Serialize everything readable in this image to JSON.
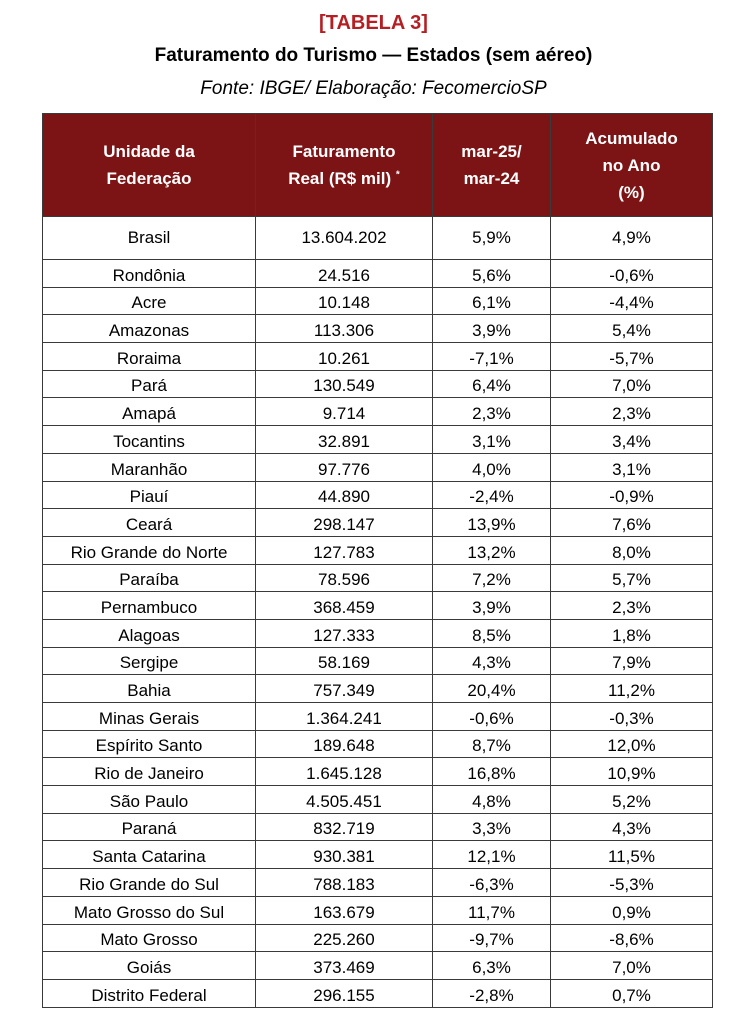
{
  "header": {
    "tag": "[TABELA 3]",
    "title": "Faturamento do Turismo — Estados (sem aéreo)",
    "source": "Fonte: IBGE/ Elaboração: FecomercioSP"
  },
  "colors": {
    "tag": "#b51f24",
    "header_bg": "#7c1416",
    "header_text": "#ffffff"
  },
  "table": {
    "columns": [
      {
        "line1": "Unidade da",
        "line2": "Federação",
        "line3": ""
      },
      {
        "line1": "Faturamento",
        "line2": "Real (R$ mil)",
        "mark": "*",
        "line3": ""
      },
      {
        "line1": "mar-25/",
        "line2": "mar-24",
        "line3": ""
      },
      {
        "line1": "Acumulado",
        "line2": "no Ano",
        "line3": "(%)"
      }
    ],
    "rows": [
      {
        "uf": "Brasil",
        "faturamento": "13.604.202",
        "var": "5,9%",
        "acum": "4,9%"
      },
      {
        "uf": "Rondônia",
        "faturamento": "24.516",
        "var": "5,6%",
        "acum": "-0,6%"
      },
      {
        "uf": "Acre",
        "faturamento": "10.148",
        "var": "6,1%",
        "acum": "-4,4%"
      },
      {
        "uf": "Amazonas",
        "faturamento": "113.306",
        "var": "3,9%",
        "acum": "5,4%"
      },
      {
        "uf": "Roraima",
        "faturamento": "10.261",
        "var": "-7,1%",
        "acum": "-5,7%"
      },
      {
        "uf": "Pará",
        "faturamento": "130.549",
        "var": "6,4%",
        "acum": "7,0%"
      },
      {
        "uf": "Amapá",
        "faturamento": "9.714",
        "var": "2,3%",
        "acum": "2,3%"
      },
      {
        "uf": "Tocantins",
        "faturamento": "32.891",
        "var": "3,1%",
        "acum": "3,4%"
      },
      {
        "uf": "Maranhão",
        "faturamento": "97.776",
        "var": "4,0%",
        "acum": "3,1%"
      },
      {
        "uf": "Piauí",
        "faturamento": "44.890",
        "var": "-2,4%",
        "acum": "-0,9%"
      },
      {
        "uf": "Ceará",
        "faturamento": "298.147",
        "var": "13,9%",
        "acum": "7,6%"
      },
      {
        "uf": "Rio Grande do Norte",
        "faturamento": "127.783",
        "var": "13,2%",
        "acum": "8,0%"
      },
      {
        "uf": "Paraíba",
        "faturamento": "78.596",
        "var": "7,2%",
        "acum": "5,7%"
      },
      {
        "uf": "Pernambuco",
        "faturamento": "368.459",
        "var": "3,9%",
        "acum": "2,3%"
      },
      {
        "uf": "Alagoas",
        "faturamento": "127.333",
        "var": "8,5%",
        "acum": "1,8%"
      },
      {
        "uf": "Sergipe",
        "faturamento": "58.169",
        "var": "4,3%",
        "acum": "7,9%"
      },
      {
        "uf": "Bahia",
        "faturamento": "757.349",
        "var": "20,4%",
        "acum": "11,2%"
      },
      {
        "uf": "Minas Gerais",
        "faturamento": "1.364.241",
        "var": "-0,6%",
        "acum": "-0,3%"
      },
      {
        "uf": "Espírito Santo",
        "faturamento": "189.648",
        "var": "8,7%",
        "acum": "12,0%"
      },
      {
        "uf": "Rio de Janeiro",
        "faturamento": "1.645.128",
        "var": "16,8%",
        "acum": "10,9%"
      },
      {
        "uf": "São Paulo",
        "faturamento": "4.505.451",
        "var": "4,8%",
        "acum": "5,2%"
      },
      {
        "uf": "Paraná",
        "faturamento": "832.719",
        "var": "3,3%",
        "acum": "4,3%"
      },
      {
        "uf": "Santa Catarina",
        "faturamento": "930.381",
        "var": "12,1%",
        "acum": "11,5%"
      },
      {
        "uf": "Rio Grande do Sul",
        "faturamento": "788.183",
        "var": "-6,3%",
        "acum": "-5,3%"
      },
      {
        "uf": "Mato Grosso do Sul",
        "faturamento": "163.679",
        "var": "11,7%",
        "acum": "0,9%"
      },
      {
        "uf": "Mato Grosso",
        "faturamento": "225.260",
        "var": "-9,7%",
        "acum": "-8,6%"
      },
      {
        "uf": "Goiás",
        "faturamento": "373.469",
        "var": "6,3%",
        "acum": "7,0%"
      },
      {
        "uf": "Distrito Federal",
        "faturamento": "296.155",
        "var": "-2,8%",
        "acum": "0,7%"
      }
    ]
  }
}
